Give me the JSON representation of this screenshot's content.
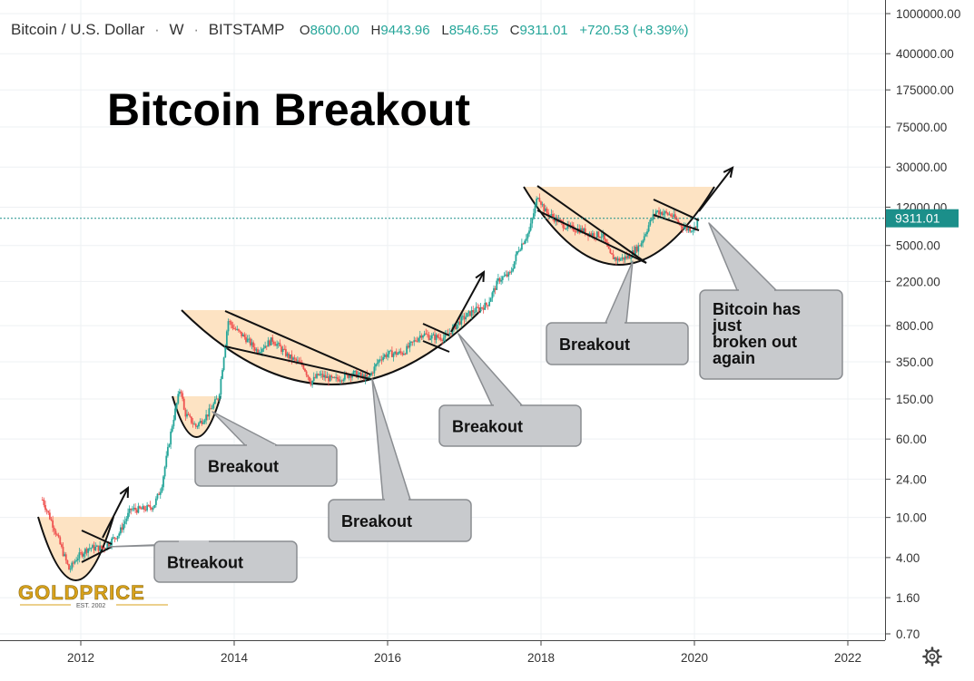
{
  "header": {
    "symbol": "Bitcoin / U.S. Dollar",
    "sep": "·",
    "interval": "W",
    "exchange": "BITSTAMP",
    "open_label": "O",
    "open": "8600.00",
    "high_label": "H",
    "high": "9443.96",
    "low_label": "L",
    "low": "8546.55",
    "close_label": "C",
    "close": "9311.01",
    "change": "+720.53 (+8.39%)"
  },
  "price_badge": "9311.01",
  "colors": {
    "up": "#26a69a",
    "down": "#ef5350",
    "cup_fill": "#fde3c3",
    "badge": "#1b8f8a",
    "callout_fill": "#c8cacd",
    "callout_stroke": "#8a8d91",
    "grid": "#eef0f3",
    "logo": "#d9a21b"
  },
  "chart_data": {
    "type": "candlestick",
    "title": "Bitcoin Breakout",
    "yscale": "log",
    "ylim": [
      0.6,
      1200000
    ],
    "xlim": [
      2011.3,
      2022.9
    ],
    "x_ticks": [
      "2012",
      "2014",
      "2016",
      "2018",
      "2020",
      "2022"
    ],
    "y_ticks": [
      "1000000.00",
      "400000.00",
      "175000.00",
      "75000.00",
      "30000.00",
      "12000.00",
      "5000.00",
      "2200.00",
      "800.00",
      "350.00",
      "150.00",
      "60.00",
      "24.00",
      "10.00",
      "4.00",
      "1.60",
      "0.70"
    ],
    "price_path": [
      [
        2011.5,
        15
      ],
      [
        2011.65,
        8
      ],
      [
        2011.85,
        3
      ],
      [
        2011.95,
        4
      ],
      [
        2012.1,
        5
      ],
      [
        2012.3,
        5
      ],
      [
        2012.5,
        7
      ],
      [
        2012.65,
        12
      ],
      [
        2012.8,
        12
      ],
      [
        2012.95,
        13
      ],
      [
        2013.05,
        20
      ],
      [
        2013.2,
        90
      ],
      [
        2013.3,
        200
      ],
      [
        2013.35,
        110
      ],
      [
        2013.5,
        80
      ],
      [
        2013.65,
        105
      ],
      [
        2013.8,
        160
      ],
      [
        2013.92,
        900
      ],
      [
        2014.0,
        750
      ],
      [
        2014.15,
        600
      ],
      [
        2014.3,
        450
      ],
      [
        2014.5,
        580
      ],
      [
        2014.7,
        400
      ],
      [
        2014.9,
        320
      ],
      [
        2015.0,
        220
      ],
      [
        2015.1,
        260
      ],
      [
        2015.3,
        230
      ],
      [
        2015.55,
        270
      ],
      [
        2015.75,
        240
      ],
      [
        2015.9,
        380
      ],
      [
        2016.0,
        420
      ],
      [
        2016.2,
        430
      ],
      [
        2016.45,
        670
      ],
      [
        2016.55,
        620
      ],
      [
        2016.75,
        610
      ],
      [
        2016.95,
        900
      ],
      [
        2017.1,
        1100
      ],
      [
        2017.3,
        1300
      ],
      [
        2017.45,
        2300
      ],
      [
        2017.6,
        2600
      ],
      [
        2017.7,
        4500
      ],
      [
        2017.85,
        7000
      ],
      [
        2017.96,
        16000
      ],
      [
        2018.05,
        11000
      ],
      [
        2018.2,
        9000
      ],
      [
        2018.35,
        7500
      ],
      [
        2018.5,
        7200
      ],
      [
        2018.65,
        6500
      ],
      [
        2018.8,
        6300
      ],
      [
        2018.9,
        4000
      ],
      [
        2019.0,
        3600
      ],
      [
        2019.15,
        3900
      ],
      [
        2019.3,
        5200
      ],
      [
        2019.42,
        8500
      ],
      [
        2019.5,
        11000
      ],
      [
        2019.6,
        10500
      ],
      [
        2019.7,
        10000
      ],
      [
        2019.8,
        8300
      ],
      [
        2019.9,
        7300
      ],
      [
        2020.0,
        7400
      ],
      [
        2020.05,
        9311
      ]
    ],
    "callouts": [
      "Btreakout",
      "Breakout",
      "Breakout",
      "Breakout",
      "Breakout",
      "Bitcoin has just broken out again"
    ]
  },
  "logo": {
    "main": "GOLDPRICE",
    "sub": "EST. 2002"
  }
}
